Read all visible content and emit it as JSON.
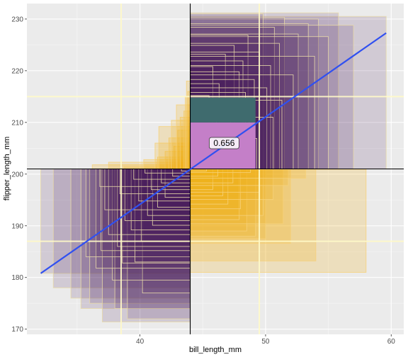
{
  "chart_data": {
    "type": "scatter",
    "title": "",
    "xlabel": "bill_length_mm",
    "ylabel": "flipper_length_mm",
    "xlim": [
      31,
      61
    ],
    "ylim": [
      169,
      233
    ],
    "x_ticks": [
      40,
      50,
      60
    ],
    "y_ticks": [
      170,
      180,
      190,
      200,
      210,
      220,
      230
    ],
    "grid": true,
    "legend": "none",
    "mean_crosshair": {
      "x": 44,
      "y": 201
    },
    "quantile_lines": {
      "x": [
        38.5,
        49.5
      ],
      "y": [
        187,
        215
      ]
    },
    "regression_line": {
      "x": [
        32.1,
        59.6
      ],
      "y": [
        180.8,
        227.3
      ]
    },
    "correlation_label": "0.656",
    "colors": {
      "positive_quadrant": "#4b1c5e",
      "negative_quadrant": "#f2b21d",
      "highlight_fill": "#c47fc8",
      "teal_fill": "#3f6b6e",
      "regression": "#3050f0",
      "quantile_lines": "#fff9c8",
      "panel_background": "#ebebeb"
    },
    "rectangles_upper_right": [
      [
        59.6,
        230.5
      ],
      [
        55.8,
        231.2
      ],
      [
        54.2,
        230.0
      ],
      [
        51.5,
        230.3
      ],
      [
        49.8,
        231.0
      ],
      [
        57.0,
        228.8
      ],
      [
        53.4,
        229.1
      ],
      [
        50.7,
        228.4
      ],
      [
        52.6,
        227.1
      ],
      [
        55.0,
        226.6
      ],
      [
        48.6,
        226.9
      ],
      [
        51.1,
        225.3
      ],
      [
        47.5,
        224.9
      ],
      [
        49.5,
        223.6
      ],
      [
        46.8,
        223.2
      ],
      [
        53.9,
        222.8
      ],
      [
        48.2,
        221.9
      ],
      [
        50.4,
        221.0
      ],
      [
        45.8,
        220.8
      ],
      [
        47.9,
        219.8
      ],
      [
        52.2,
        219.2
      ],
      [
        49.1,
        218.3
      ],
      [
        46.3,
        217.5
      ],
      [
        50.1,
        216.7
      ],
      [
        48.4,
        215.8
      ],
      [
        45.5,
        215.2
      ],
      [
        51.3,
        214.3
      ],
      [
        47.2,
        213.4
      ],
      [
        49.0,
        212.6
      ],
      [
        46.1,
        211.9
      ],
      [
        50.6,
        211.0
      ],
      [
        48.7,
        210.2
      ],
      [
        45.2,
        209.5
      ],
      [
        47.6,
        208.7
      ],
      [
        46.6,
        207.8
      ],
      [
        49.3,
        206.9
      ],
      [
        48.0,
        205.4
      ],
      [
        45.9,
        204.6
      ],
      [
        47.1,
        203.2
      ],
      [
        46.4,
        202.0
      ]
    ],
    "rectangles_lower_left": [
      [
        32.1,
        180.8
      ],
      [
        33.1,
        178.0
      ],
      [
        34.5,
        176.0
      ],
      [
        35.3,
        174.0
      ],
      [
        36.0,
        175.0
      ],
      [
        37.0,
        171.4
      ],
      [
        38.0,
        174.0
      ],
      [
        39.0,
        172.0
      ],
      [
        40.2,
        177.0
      ],
      [
        37.8,
        179.5
      ],
      [
        36.5,
        181.8
      ],
      [
        38.6,
        182.8
      ],
      [
        35.7,
        184.0
      ],
      [
        39.6,
        183.0
      ],
      [
        36.9,
        185.2
      ],
      [
        38.2,
        186.0
      ],
      [
        40.1,
        187.0
      ],
      [
        37.5,
        188.3
      ],
      [
        39.3,
        189.2
      ],
      [
        41.0,
        190.1
      ],
      [
        38.8,
        191.0
      ],
      [
        40.6,
        192.0
      ],
      [
        37.2,
        193.1
      ],
      [
        41.4,
        193.6
      ],
      [
        39.9,
        194.8
      ],
      [
        42.0,
        195.5
      ],
      [
        38.4,
        196.2
      ],
      [
        40.9,
        197.0
      ],
      [
        36.8,
        197.6
      ],
      [
        41.7,
        198.3
      ],
      [
        39.5,
        199.0
      ],
      [
        42.6,
        199.6
      ],
      [
        40.4,
        200.2
      ],
      [
        43.3,
        200.6
      ]
    ],
    "rectangles_upper_left": [
      [
        36.2,
        201.8
      ],
      [
        37.5,
        202.3
      ],
      [
        38.7,
        201.5
      ],
      [
        40.3,
        202.8
      ],
      [
        41.4,
        203.3
      ],
      [
        42.0,
        204.4
      ],
      [
        42.7,
        205.4
      ],
      [
        41.2,
        206.0
      ],
      [
        42.3,
        207.0
      ],
      [
        43.0,
        208.5
      ],
      [
        41.5,
        209.2
      ],
      [
        42.5,
        210.4
      ],
      [
        43.2,
        211.0
      ],
      [
        43.5,
        212.2
      ],
      [
        42.9,
        213.4
      ],
      [
        43.6,
        215.0
      ],
      [
        43.8,
        216.0
      ],
      [
        43.7,
        218.0
      ]
    ],
    "rectangles_lower_right": [
      [
        58.0,
        181.0
      ],
      [
        54.0,
        183.2
      ],
      [
        52.0,
        186.6
      ],
      [
        50.0,
        187.5
      ],
      [
        49.2,
        188.0
      ],
      [
        48.5,
        189.0
      ],
      [
        51.4,
        190.4
      ],
      [
        47.9,
        191.2
      ],
      [
        49.8,
        192.0
      ],
      [
        48.0,
        193.3
      ],
      [
        47.0,
        194.2
      ],
      [
        50.6,
        195.1
      ],
      [
        46.6,
        195.8
      ],
      [
        49.5,
        196.5
      ],
      [
        45.8,
        197.0
      ],
      [
        51.8,
        197.8
      ],
      [
        47.4,
        198.3
      ],
      [
        53.2,
        199.2
      ],
      [
        46.2,
        199.6
      ],
      [
        48.8,
        200.3
      ],
      [
        45.3,
        200.6
      ],
      [
        58.0,
        201.0
      ]
    ]
  }
}
